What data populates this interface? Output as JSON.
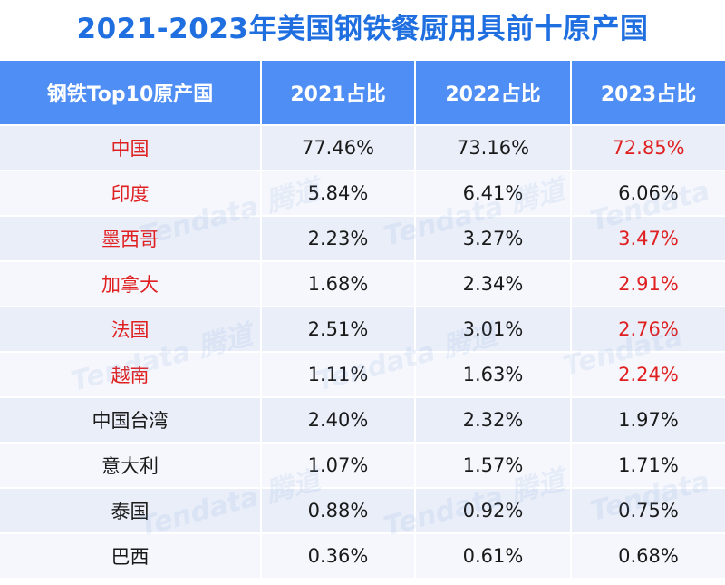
{
  "chart_data": {
    "type": "table",
    "title": "2021-2023年美国钢铁餐厨用具前十原产国",
    "columns": [
      "钢铁Top10原产国",
      "2021占比",
      "2022占比",
      "2023占比"
    ],
    "rows": [
      {
        "country": "中国",
        "y2021": "77.46%",
        "y2022": "73.16%",
        "y2023": "72.85%",
        "country_red": true,
        "y2023_red": true
      },
      {
        "country": "印度",
        "y2021": "5.84%",
        "y2022": "6.41%",
        "y2023": "6.06%",
        "country_red": true,
        "y2023_red": false
      },
      {
        "country": "墨西哥",
        "y2021": "2.23%",
        "y2022": "3.27%",
        "y2023": "3.47%",
        "country_red": true,
        "y2023_red": true
      },
      {
        "country": "加拿大",
        "y2021": "1.68%",
        "y2022": "2.34%",
        "y2023": "2.91%",
        "country_red": true,
        "y2023_red": true
      },
      {
        "country": "法国",
        "y2021": "2.51%",
        "y2022": "3.01%",
        "y2023": "2.76%",
        "country_red": true,
        "y2023_red": true
      },
      {
        "country": "越南",
        "y2021": "1.11%",
        "y2022": "1.63%",
        "y2023": "2.24%",
        "country_red": true,
        "y2023_red": true
      },
      {
        "country": "中国台湾",
        "y2021": "2.40%",
        "y2022": "2.32%",
        "y2023": "1.97%",
        "country_red": false,
        "y2023_red": false
      },
      {
        "country": "意大利",
        "y2021": "1.07%",
        "y2022": "1.57%",
        "y2023": "1.71%",
        "country_red": false,
        "y2023_red": false
      },
      {
        "country": "泰国",
        "y2021": "0.88%",
        "y2022": "0.92%",
        "y2023": "0.75%",
        "country_red": false,
        "y2023_red": false
      },
      {
        "country": "巴西",
        "y2021": "0.36%",
        "y2022": "0.61%",
        "y2023": "0.68%",
        "country_red": false,
        "y2023_red": false
      }
    ],
    "highlight_color": "#e02020",
    "header_color": "#4f8ef5",
    "title_color": "#1f6fe0"
  },
  "watermark": {
    "text": "Tendata",
    "cn_text": "腾道"
  }
}
